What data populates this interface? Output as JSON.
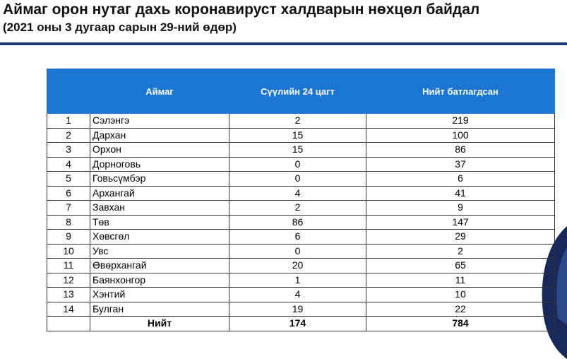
{
  "header": {
    "title": "Аймаг орон нутаг дахь коронавируст халдварын нөхцөл байдал",
    "subtitle": "(2021 оны 3 дугаар сарын 29-ний өдөр)"
  },
  "table": {
    "columns": [
      "Аймаг",
      "Сүүлийн 24 цагт",
      "Нийт батлагдсан"
    ],
    "rows": [
      [
        1,
        "Сэлэнгэ",
        2,
        219
      ],
      [
        2,
        "Дархан",
        15,
        100
      ],
      [
        3,
        "Орхон",
        15,
        86
      ],
      [
        4,
        "Дорноговь",
        0,
        37
      ],
      [
        5,
        "Говьсүмбэр",
        0,
        6
      ],
      [
        6,
        "Архангай",
        4,
        41
      ],
      [
        7,
        "Завхан",
        2,
        9
      ],
      [
        8,
        "Төв",
        86,
        147
      ],
      [
        9,
        "Хөвсгөл",
        6,
        29
      ],
      [
        10,
        "Увс",
        0,
        2
      ],
      [
        11,
        "Өвөрхангай",
        20,
        65
      ],
      [
        12,
        "Баянхонгор",
        1,
        11
      ],
      [
        13,
        "Хэнтий",
        4,
        10
      ],
      [
        14,
        "Булган",
        19,
        22
      ]
    ],
    "total": [
      "Нийт",
      174,
      784
    ]
  }
}
